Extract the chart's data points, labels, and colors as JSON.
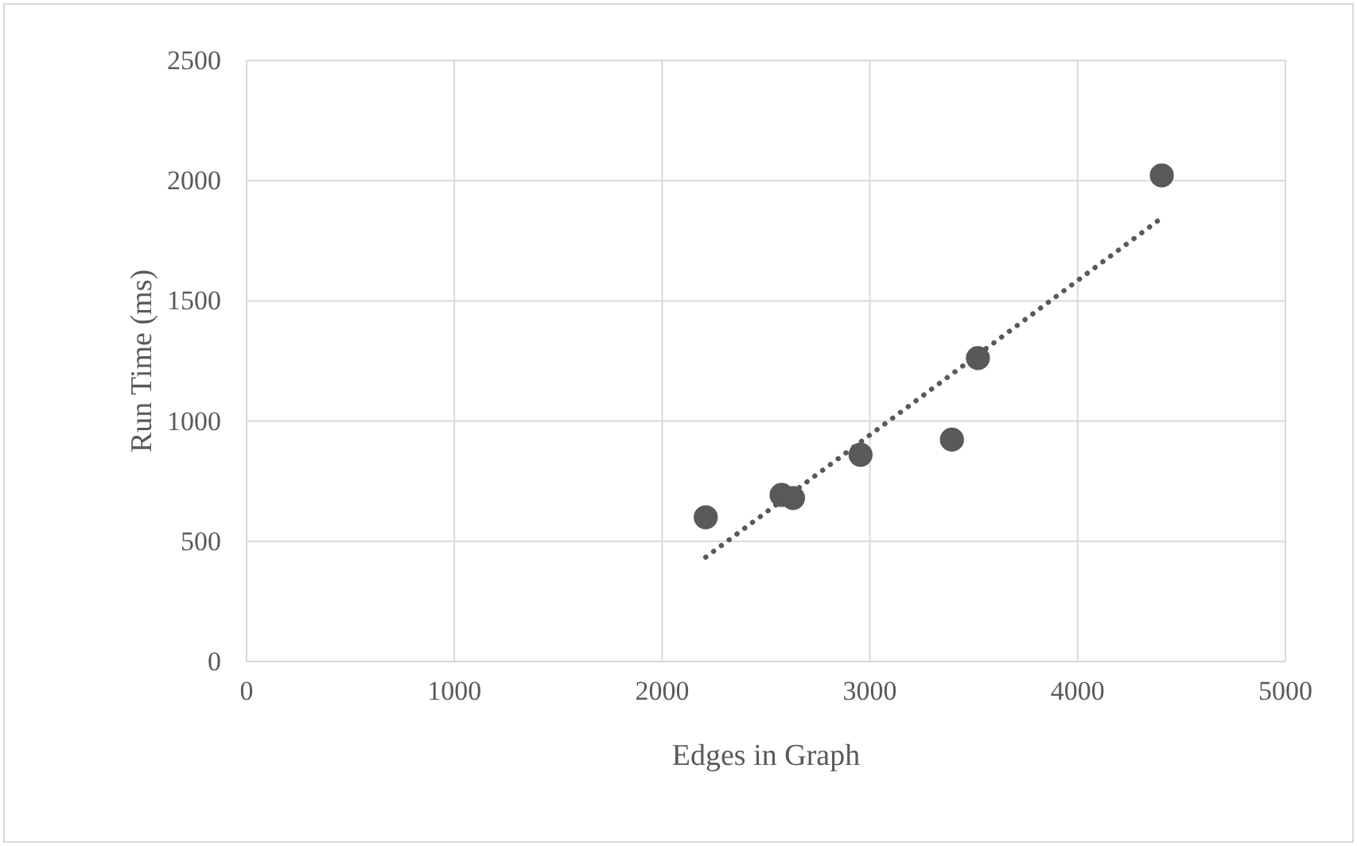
{
  "chart_data": {
    "type": "scatter",
    "xlabel": "Edges in Graph",
    "ylabel": "Run Time (ms)",
    "xlim": [
      0,
      5000
    ],
    "xticks": [
      0,
      1000,
      2000,
      3000,
      4000,
      5000
    ],
    "ylim": [
      0,
      2500
    ],
    "yticks": [
      0,
      500,
      1000,
      1500,
      2000,
      2500
    ],
    "grid": true,
    "marker": "circle",
    "series": [
      {
        "color": "#595959",
        "x": [
          2210,
          2575,
          2630,
          2955,
          3395,
          3520,
          4405
        ],
        "values": [
          600,
          693,
          680,
          860,
          923,
          1262,
          2022
        ]
      },
      {
        "type": "line",
        "color": "#595959",
        "line_style": "dotted",
        "marker": "none",
        "x": [
          2210,
          4405
        ],
        "values": [
          434,
          1845
        ]
      }
    ]
  }
}
